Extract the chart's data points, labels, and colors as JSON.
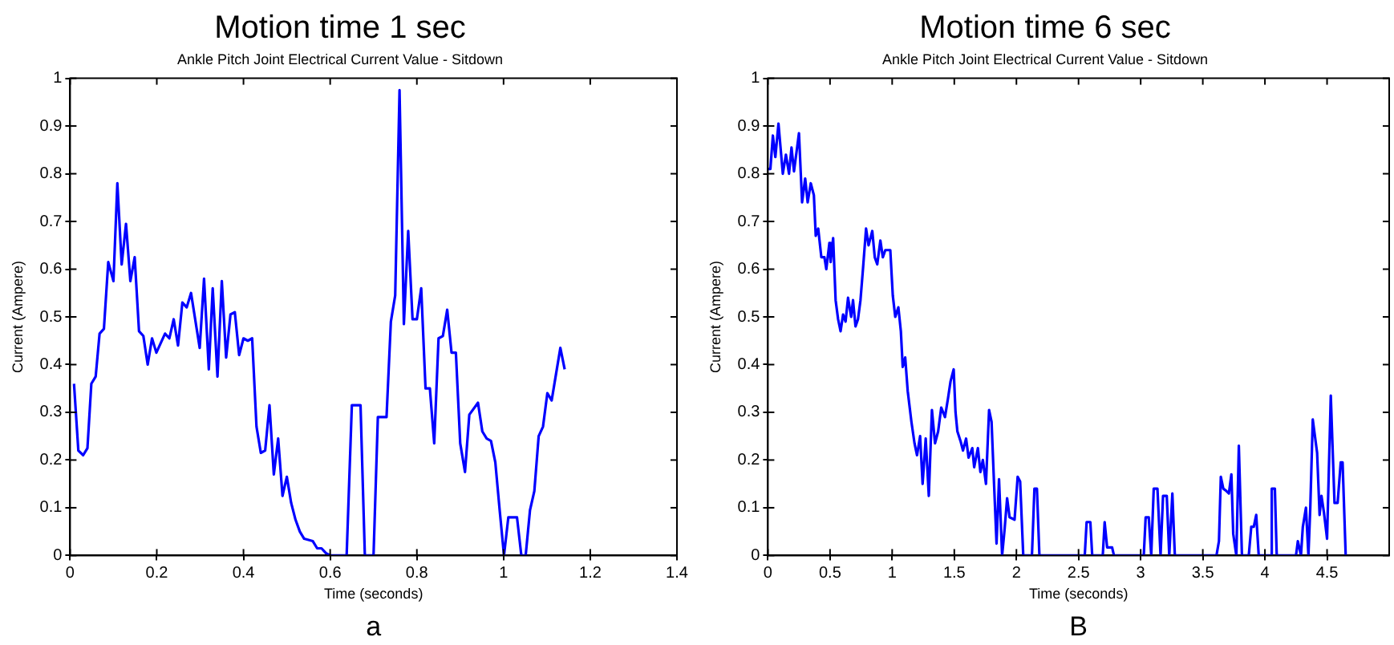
{
  "chart_data": [
    {
      "type": "line",
      "title": "Motion time 1 sec",
      "subtitle": "Ankle Pitch Joint Electrical Current Value - Sitdown",
      "xlabel": "Time (seconds)",
      "ylabel": "Current (Ampere)",
      "annotations": [
        "a"
      ],
      "color": "#0000ff",
      "grid": false,
      "legend": false,
      "marker": "none",
      "line_style": "solid",
      "xlim": [
        0,
        1.4
      ],
      "xticks": [
        0,
        0.2,
        0.4,
        0.6,
        0.8,
        1,
        1.2,
        1.4
      ],
      "ylim": [
        0,
        1
      ],
      "yticks": [
        0,
        0.1,
        0.2,
        0.3,
        0.4,
        0.5,
        0.6,
        0.7,
        0.8,
        0.9,
        1
      ],
      "x": [
        0.009,
        0.019,
        0.03,
        0.04,
        0.049,
        0.059,
        0.068,
        0.078,
        0.088,
        0.1,
        0.109,
        0.119,
        0.129,
        0.139,
        0.149,
        0.159,
        0.169,
        0.179,
        0.189,
        0.199,
        0.219,
        0.229,
        0.239,
        0.249,
        0.259,
        0.269,
        0.279,
        0.299,
        0.309,
        0.32,
        0.329,
        0.34,
        0.35,
        0.36,
        0.37,
        0.38,
        0.39,
        0.4,
        0.41,
        0.42,
        0.43,
        0.44,
        0.45,
        0.46,
        0.47,
        0.48,
        0.49,
        0.5,
        0.51,
        0.52,
        0.53,
        0.54,
        0.56,
        0.57,
        0.58,
        0.59,
        0.6,
        0.638,
        0.65,
        0.67,
        0.68,
        0.7,
        0.71,
        0.73,
        0.74,
        0.75,
        0.76,
        0.77,
        0.78,
        0.79,
        0.8,
        0.81,
        0.82,
        0.83,
        0.84,
        0.85,
        0.86,
        0.87,
        0.88,
        0.89,
        0.9,
        0.911,
        0.921,
        0.941,
        0.951,
        0.961,
        0.971,
        0.981,
        0.991,
        1.001,
        1.011,
        1.031,
        1.041,
        1.051,
        1.061,
        1.071,
        1.081,
        1.091,
        1.101,
        1.111,
        1.121,
        1.131,
        1.141
      ],
      "values": [
        0.36,
        0.22,
        0.21,
        0.225,
        0.36,
        0.375,
        0.465,
        0.475,
        0.615,
        0.575,
        0.78,
        0.61,
        0.695,
        0.575,
        0.625,
        0.47,
        0.46,
        0.4,
        0.455,
        0.425,
        0.465,
        0.455,
        0.495,
        0.44,
        0.53,
        0.52,
        0.55,
        0.435,
        0.58,
        0.39,
        0.56,
        0.375,
        0.575,
        0.415,
        0.505,
        0.51,
        0.42,
        0.455,
        0.45,
        0.455,
        0.27,
        0.215,
        0.22,
        0.315,
        0.17,
        0.245,
        0.125,
        0.165,
        0.11,
        0.075,
        0.05,
        0.035,
        0.03,
        0.015,
        0.015,
        0.005,
        0,
        0,
        0.315,
        0.315,
        0,
        0,
        0.29,
        0.29,
        0.49,
        0.545,
        0.975,
        0.485,
        0.68,
        0.495,
        0.495,
        0.56,
        0.35,
        0.35,
        0.235,
        0.455,
        0.46,
        0.515,
        0.425,
        0.425,
        0.235,
        0.175,
        0.295,
        0.32,
        0.26,
        0.245,
        0.24,
        0.195,
        0.095,
        0,
        0.08,
        0.08,
        0,
        0,
        0.095,
        0.135,
        0.25,
        0.27,
        0.34,
        0.325,
        0.38,
        0.435,
        0.39
      ]
    },
    {
      "type": "line",
      "title": "Motion time 6 sec",
      "subtitle": "Ankle Pitch Joint Electrical Current Value - Sitdown",
      "xlabel": "Time (seconds)",
      "ylabel": "Current (Ampere)",
      "annotations": [
        "B"
      ],
      "color": "#0000ff",
      "grid": false,
      "legend": false,
      "marker": "none",
      "line_style": "solid",
      "xlim": [
        0,
        5
      ],
      "xticks": [
        0,
        0.5,
        1,
        1.5,
        2,
        2.5,
        3,
        3.5,
        4,
        4.5
      ],
      "ylim": [
        0,
        1
      ],
      "yticks": [
        0,
        0.1,
        0.2,
        0.3,
        0.4,
        0.5,
        0.6,
        0.7,
        0.8,
        0.9,
        1
      ],
      "x": [
        0,
        0.02,
        0.04,
        0.06,
        0.085,
        0.12,
        0.145,
        0.17,
        0.19,
        0.21,
        0.235,
        0.25,
        0.275,
        0.3,
        0.32,
        0.345,
        0.37,
        0.385,
        0.405,
        0.43,
        0.455,
        0.47,
        0.495,
        0.505,
        0.525,
        0.545,
        0.565,
        0.585,
        0.605,
        0.625,
        0.645,
        0.67,
        0.685,
        0.705,
        0.725,
        0.745,
        0.765,
        0.79,
        0.81,
        0.84,
        0.86,
        0.88,
        0.905,
        0.925,
        0.945,
        0.985,
        1.005,
        1.025,
        1.05,
        1.07,
        1.085,
        1.105,
        1.125,
        1.155,
        1.18,
        1.2,
        1.225,
        1.245,
        1.27,
        1.295,
        1.32,
        1.345,
        1.37,
        1.395,
        1.425,
        1.45,
        1.47,
        1.495,
        1.51,
        1.525,
        1.55,
        1.57,
        1.595,
        1.615,
        1.645,
        1.66,
        1.69,
        1.71,
        1.73,
        1.755,
        1.78,
        1.8,
        1.82,
        1.84,
        1.86,
        1.885,
        1.905,
        1.925,
        1.945,
        1.985,
        2.01,
        2.03,
        2.055,
        2.125,
        2.145,
        2.165,
        2.185,
        2.55,
        2.565,
        2.595,
        2.61,
        2.695,
        2.71,
        2.73,
        2.77,
        2.785,
        3.025,
        3.04,
        3.065,
        3.085,
        3.105,
        3.135,
        3.16,
        3.18,
        3.21,
        3.23,
        3.255,
        3.275,
        3.61,
        3.63,
        3.645,
        3.665,
        3.69,
        3.71,
        3.73,
        3.745,
        3.77,
        3.79,
        3.815,
        3.87,
        3.89,
        3.91,
        3.93,
        3.95,
        4.045,
        4.055,
        4.08,
        4.095,
        4.25,
        4.265,
        4.29,
        4.305,
        4.33,
        4.35,
        4.365,
        4.385,
        4.42,
        4.44,
        4.455,
        4.475,
        4.5,
        4.53,
        4.56,
        4.585,
        4.61,
        4.625,
        4.65
      ],
      "values": [
        0.81,
        0.81,
        0.88,
        0.835,
        0.905,
        0.8,
        0.84,
        0.8,
        0.855,
        0.805,
        0.855,
        0.885,
        0.74,
        0.79,
        0.74,
        0.78,
        0.755,
        0.67,
        0.685,
        0.625,
        0.625,
        0.6,
        0.655,
        0.615,
        0.665,
        0.535,
        0.495,
        0.47,
        0.505,
        0.49,
        0.54,
        0.5,
        0.535,
        0.48,
        0.495,
        0.535,
        0.6,
        0.685,
        0.65,
        0.68,
        0.625,
        0.61,
        0.66,
        0.625,
        0.64,
        0.64,
        0.545,
        0.5,
        0.52,
        0.47,
        0.395,
        0.415,
        0.345,
        0.28,
        0.235,
        0.21,
        0.25,
        0.15,
        0.245,
        0.125,
        0.305,
        0.235,
        0.26,
        0.31,
        0.29,
        0.33,
        0.365,
        0.39,
        0.3,
        0.26,
        0.24,
        0.22,
        0.245,
        0.205,
        0.225,
        0.185,
        0.225,
        0.175,
        0.2,
        0.15,
        0.305,
        0.28,
        0.15,
        0.025,
        0.16,
        0,
        0.055,
        0.12,
        0.08,
        0.075,
        0.165,
        0.155,
        0,
        0,
        0.14,
        0.14,
        0,
        0,
        0.07,
        0.07,
        0,
        0,
        0.07,
        0.017,
        0.017,
        0,
        0,
        0.08,
        0.08,
        0,
        0.14,
        0.14,
        0,
        0.125,
        0.125,
        0,
        0.13,
        0,
        0,
        0.03,
        0.165,
        0.14,
        0.135,
        0.13,
        0.17,
        0.045,
        0,
        0.23,
        0,
        0,
        0.06,
        0.06,
        0.085,
        0,
        0,
        0.14,
        0.14,
        0,
        0,
        0.03,
        0,
        0.06,
        0.1,
        0,
        0.1,
        0.285,
        0.215,
        0.085,
        0.125,
        0.09,
        0.035,
        0.335,
        0.11,
        0.11,
        0.195,
        0.195,
        0
      ]
    }
  ]
}
